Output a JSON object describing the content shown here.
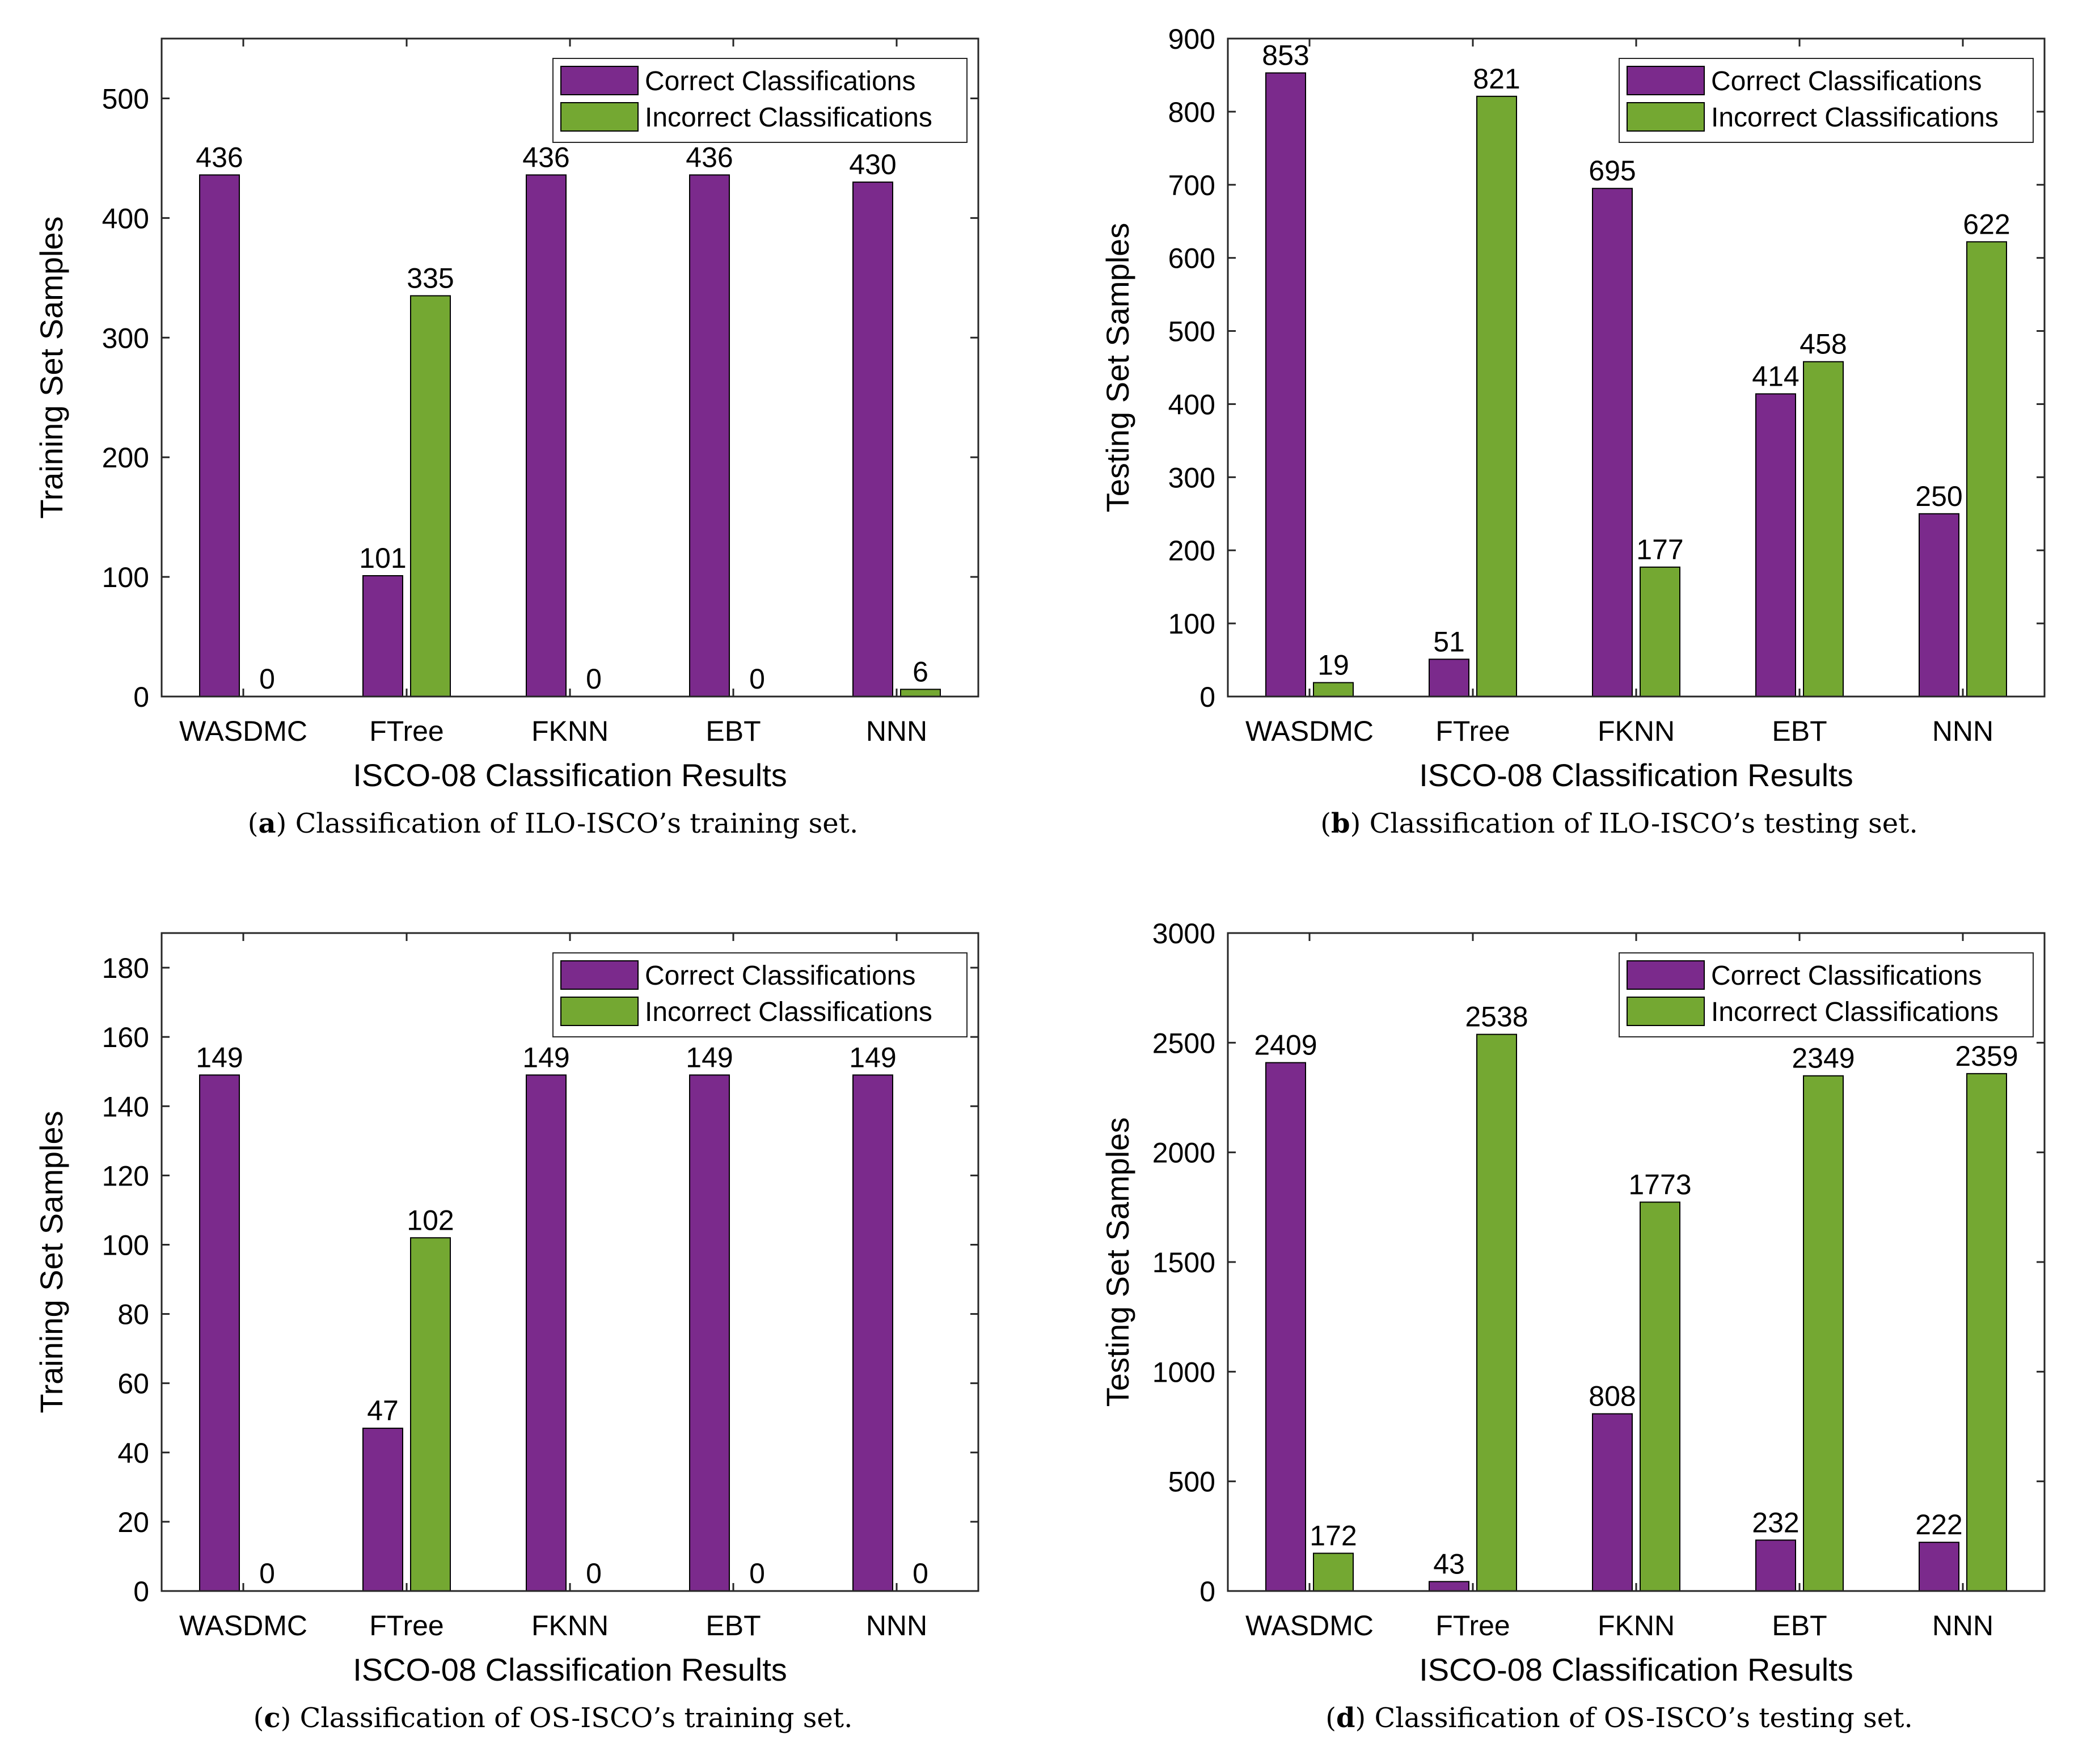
{
  "colors": {
    "correct": "#7B2A8C",
    "incorrect": "#74A832",
    "axis": "#262626"
  },
  "chart_data": [
    {
      "type": "bar",
      "panel_letter": "a",
      "caption": "Classification of ILO-ISCO’s training set.",
      "xlabel": "ISCO-08 Classification Results",
      "ylabel": "Training Set Samples",
      "categories": [
        "WASDMC",
        "FTree",
        "FKNN",
        "EBT",
        "NNN"
      ],
      "series": [
        {
          "name": "Correct Classifications",
          "values": [
            436,
            101,
            436,
            436,
            430
          ]
        },
        {
          "name": "Incorrect Classifications",
          "values": [
            0,
            335,
            0,
            0,
            6
          ]
        }
      ],
      "ylim": [
        0,
        550
      ],
      "yticks": [
        0,
        100,
        200,
        300,
        400,
        500
      ],
      "legend": "top-right",
      "grid": false
    },
    {
      "type": "bar",
      "panel_letter": "b",
      "caption": "Classification of ILO-ISCO’s testing set.",
      "xlabel": "ISCO-08 Classification Results",
      "ylabel": "Testing Set Samples",
      "categories": [
        "WASDMC",
        "FTree",
        "FKNN",
        "EBT",
        "NNN"
      ],
      "series": [
        {
          "name": "Correct Classifications",
          "values": [
            853,
            51,
            695,
            414,
            250
          ]
        },
        {
          "name": "Incorrect Classifications",
          "values": [
            19,
            821,
            177,
            458,
            622
          ]
        }
      ],
      "ylim": [
        0,
        900
      ],
      "yticks": [
        0,
        100,
        200,
        300,
        400,
        500,
        600,
        700,
        800,
        900
      ],
      "legend": "top-right",
      "grid": false
    },
    {
      "type": "bar",
      "panel_letter": "c",
      "caption": "Classification of OS-ISCO’s training set.",
      "xlabel": "ISCO-08 Classification Results",
      "ylabel": "Training Set Samples",
      "categories": [
        "WASDMC",
        "FTree",
        "FKNN",
        "EBT",
        "NNN"
      ],
      "series": [
        {
          "name": "Correct Classifications",
          "values": [
            149,
            47,
            149,
            149,
            149
          ]
        },
        {
          "name": "Incorrect Classifications",
          "values": [
            0,
            102,
            0,
            0,
            0
          ]
        }
      ],
      "ylim": [
        0,
        190
      ],
      "yticks": [
        0,
        20,
        40,
        60,
        80,
        100,
        120,
        140,
        160,
        180
      ],
      "legend": "top-right",
      "grid": false
    },
    {
      "type": "bar",
      "panel_letter": "d",
      "caption": "Classification of OS-ISCO’s testing set.",
      "xlabel": "ISCO-08 Classification Results",
      "ylabel": "Testing Set Samples",
      "categories": [
        "WASDMC",
        "FTree",
        "FKNN",
        "EBT",
        "NNN"
      ],
      "series": [
        {
          "name": "Correct Classifications",
          "values": [
            2409,
            43,
            808,
            232,
            222
          ]
        },
        {
          "name": "Incorrect Classifications",
          "values": [
            172,
            2538,
            1773,
            2349,
            2359
          ]
        }
      ],
      "ylim": [
        0,
        3000
      ],
      "yticks": [
        0,
        500,
        1000,
        1500,
        2000,
        2500,
        3000
      ],
      "legend": "top-right",
      "grid": false
    }
  ]
}
